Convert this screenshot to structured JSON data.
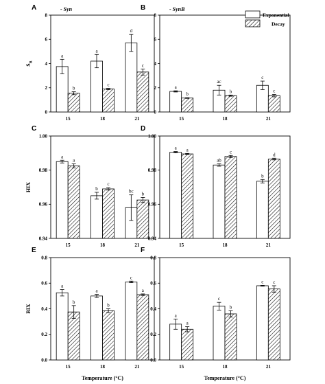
{
  "legend": {
    "entries": [
      "Exponential",
      "Decay"
    ]
  },
  "chart_data": [
    {
      "panel": "A",
      "type": "bar",
      "title": "- Syn",
      "ylabel": "S",
      "ylabel_sub": "R",
      "xlabel": "",
      "categories": [
        "15",
        "18",
        "21"
      ],
      "ylim": [
        0,
        8
      ],
      "yticks": [
        "0",
        "2",
        "4",
        "6",
        "8"
      ],
      "series": [
        {
          "name": "Exponential",
          "values": [
            3.75,
            4.2,
            5.7
          ],
          "errors": [
            0.6,
            0.55,
            0.7
          ],
          "letters": [
            "a",
            "a",
            "d"
          ]
        },
        {
          "name": "Decay",
          "values": [
            1.55,
            1.9,
            3.3
          ],
          "errors": [
            0.12,
            0.05,
            0.25
          ],
          "letters": [
            "b",
            "c",
            "c"
          ]
        }
      ]
    },
    {
      "panel": "B",
      "type": "bar",
      "title": "- SynB",
      "ylabel": "",
      "ylabel_sub": "",
      "xlabel": "",
      "categories": [
        "15",
        "18",
        "21"
      ],
      "ylim": [
        0,
        8
      ],
      "yticks": [
        "0",
        "2",
        "4",
        "6",
        "8"
      ],
      "series": [
        {
          "name": "Exponential",
          "values": [
            1.7,
            1.8,
            2.2
          ],
          "errors": [
            0.05,
            0.4,
            0.35
          ],
          "letters": [
            "a",
            "ac",
            "c"
          ]
        },
        {
          "name": "Decay",
          "values": [
            1.15,
            1.35,
            1.35
          ],
          "errors": [
            0.03,
            0.05,
            0.1
          ],
          "letters": [
            "b",
            "b",
            "c"
          ]
        }
      ]
    },
    {
      "panel": "C",
      "type": "bar",
      "title": "",
      "ylabel": "HIX",
      "ylabel_sub": "",
      "xlabel": "",
      "categories": [
        "15",
        "18",
        "21"
      ],
      "ylim": [
        0.94,
        1.0
      ],
      "yticks": [
        "0.94",
        "0.96",
        "0.98",
        "1.00"
      ],
      "series": [
        {
          "name": "Exponential",
          "values": [
            0.985,
            0.965,
            0.958
          ],
          "errors": [
            0.0008,
            0.002,
            0.0075
          ],
          "letters": [
            "a",
            "b",
            "bc"
          ]
        },
        {
          "name": "Decay",
          "values": [
            0.9825,
            0.969,
            0.9625
          ],
          "errors": [
            0.0012,
            0.0007,
            0.0015
          ],
          "letters": [
            "a",
            "c",
            "b"
          ]
        }
      ]
    },
    {
      "panel": "D",
      "type": "bar",
      "title": "",
      "ylabel": "",
      "ylabel_sub": "",
      "xlabel": "",
      "categories": [
        "15",
        "18",
        "21"
      ],
      "ylim": [
        0.94,
        1.0
      ],
      "yticks": [
        "0.94",
        "0.96",
        "0.98",
        "1.00"
      ],
      "series": [
        {
          "name": "Exponential",
          "values": [
            0.9905,
            0.983,
            0.9735
          ],
          "errors": [
            0.0004,
            0.0007,
            0.001
          ],
          "letters": [
            "a",
            "ab",
            "b"
          ]
        },
        {
          "name": "Decay",
          "values": [
            0.9895,
            0.988,
            0.9865
          ],
          "errors": [
            0.0003,
            0.0006,
            0.0005
          ],
          "letters": [
            "a",
            "c",
            "d"
          ]
        }
      ]
    },
    {
      "panel": "E",
      "type": "bar",
      "title": "",
      "ylabel": "BIX",
      "ylabel_sub": "",
      "xlabel": "Temperature (°C)",
      "categories": [
        "15",
        "18",
        "21"
      ],
      "ylim": [
        0.0,
        0.8
      ],
      "yticks": [
        "0.0",
        "0.2",
        "0.4",
        "0.6",
        "0.8"
      ],
      "series": [
        {
          "name": "Exponential",
          "values": [
            0.525,
            0.5,
            0.61
          ],
          "errors": [
            0.025,
            0.012,
            0.006
          ],
          "letters": [
            "a",
            "a",
            "c"
          ]
        },
        {
          "name": "Decay",
          "values": [
            0.375,
            0.385,
            0.51
          ],
          "errors": [
            0.05,
            0.015,
            0.006
          ],
          "letters": [
            "b",
            "b",
            "a"
          ]
        }
      ]
    },
    {
      "panel": "F",
      "type": "bar",
      "title": "",
      "ylabel": "",
      "ylabel_sub": "",
      "xlabel": "Temperature (°C)",
      "categories": [
        "15",
        "18",
        "21"
      ],
      "ylim": [
        0.0,
        0.8
      ],
      "yticks": [
        "0.0",
        "0.2",
        "0.4",
        "0.6",
        "0.8"
      ],
      "series": [
        {
          "name": "Exponential",
          "values": [
            0.28,
            0.42,
            0.58
          ],
          "errors": [
            0.04,
            0.03,
            0.003
          ],
          "letters": [
            "a",
            "c",
            "c"
          ]
        },
        {
          "name": "Decay",
          "values": [
            0.24,
            0.36,
            0.555
          ],
          "errors": [
            0.02,
            0.025,
            0.025
          ],
          "letters": [
            "a",
            "b",
            "c"
          ]
        }
      ]
    }
  ]
}
